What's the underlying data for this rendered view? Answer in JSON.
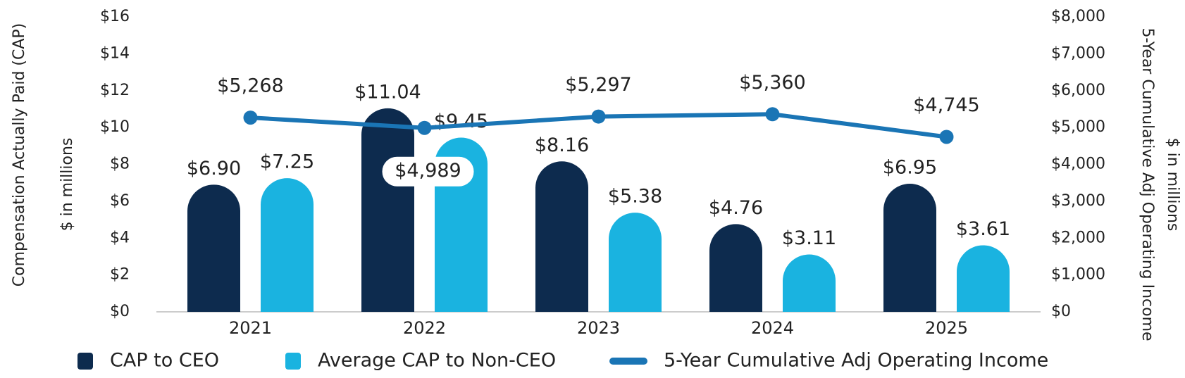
{
  "chart_data": {
    "type": "bar",
    "categories": [
      "2021",
      "2022",
      "2023",
      "2024",
      "2025"
    ],
    "series": [
      {
        "name": "CAP to CEO",
        "color": "#0d2b4e",
        "values": [
          6.9,
          11.04,
          8.16,
          4.76,
          6.95
        ],
        "value_labels": [
          "$6.90",
          "$11.04",
          "$8.16",
          "$4.76",
          "$6.95"
        ]
      },
      {
        "name": "Average CAP to Non-CEO",
        "color": "#1ab3e0",
        "values": [
          7.25,
          9.45,
          5.38,
          3.11,
          3.61
        ],
        "value_labels": [
          "$7.25",
          "$9.45",
          "$5.38",
          "$3.11",
          "$3.61"
        ]
      },
      {
        "name": "5-Year Cumulative Adj Operating Income",
        "color": "#1a75b5",
        "type": "line",
        "axis": "y2",
        "values": [
          5268,
          4989,
          5297,
          5360,
          4745
        ],
        "value_labels": [
          "$5,268",
          "$4,989",
          "$5,297",
          "$5,360",
          "$4,745"
        ]
      }
    ],
    "ylabel": [
      "Compensation Actually Paid (CAP)",
      "$ in millions"
    ],
    "y2label": [
      "5-Year Cumulative Adj Operating Income",
      "$ in millions"
    ],
    "ylim": [
      0,
      16
    ],
    "yticks": [
      {
        "value": 0,
        "label": "$0"
      },
      {
        "value": 2,
        "label": "$2"
      },
      {
        "value": 4,
        "label": "$4"
      },
      {
        "value": 6,
        "label": "$6"
      },
      {
        "value": 8,
        "label": "$8"
      },
      {
        "value": 10,
        "label": "$10"
      },
      {
        "value": 12,
        "label": "$12"
      },
      {
        "value": 14,
        "label": "$14"
      },
      {
        "value": 16,
        "label": "$16"
      }
    ],
    "y2lim": [
      0,
      8000
    ],
    "y2ticks": [
      {
        "value": 0,
        "label": "$0"
      },
      {
        "value": 1000,
        "label": "$1,000"
      },
      {
        "value": 2000,
        "label": "$2,000"
      },
      {
        "value": 3000,
        "label": "$3,000"
      },
      {
        "value": 4000,
        "label": "$4,000"
      },
      {
        "value": 5000,
        "label": "$5,000"
      },
      {
        "value": 6000,
        "label": "$6,000"
      },
      {
        "value": 7000,
        "label": "$7,000"
      },
      {
        "value": 8000,
        "label": "$8,000"
      }
    ],
    "grid": false,
    "legend": "bottom"
  }
}
